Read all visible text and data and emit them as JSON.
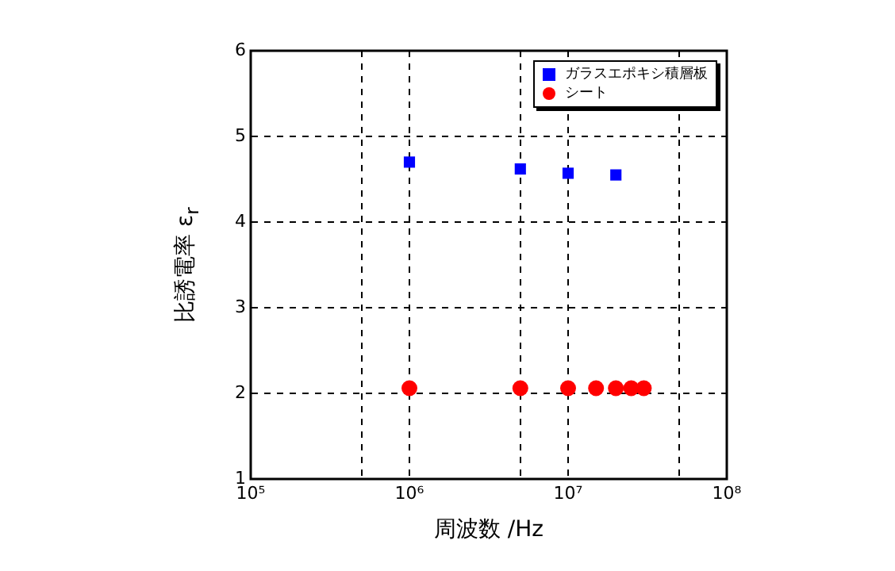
{
  "chart_data": {
    "type": "scatter",
    "xlabel": "周波数 /Hz",
    "ylabel": "比誘電率 ε$_{r}$",
    "log": "x",
    "xlim": [
      100000,
      100000000
    ],
    "xticks": [
      {
        "value": 100000,
        "label": "10⁵"
      },
      {
        "value": 500000,
        "label": null
      },
      {
        "value": 1000000,
        "label": "10⁶"
      },
      {
        "value": 5000000,
        "label": null
      },
      {
        "value": 10000000,
        "label": "10⁷"
      },
      {
        "value": 50000000,
        "label": null
      },
      {
        "value": 100000000,
        "label": "10⁸"
      }
    ],
    "ylim": [
      1,
      6
    ],
    "yticks": [
      1,
      2,
      3,
      4,
      5,
      6
    ],
    "grid": true,
    "legend": "top right",
    "series": [
      {
        "name": "ガラスエポキシ積層板",
        "color": "#0000ff",
        "marker": "square",
        "x": [
          1000000,
          5000000,
          10000000,
          20000000
        ],
        "values": [
          4.7,
          4.62,
          4.57,
          4.55
        ]
      },
      {
        "name": "シート",
        "color": "#ff0000",
        "marker": "circle",
        "x": [
          1000000,
          5000000,
          10000000,
          15000000,
          20000000,
          25000000,
          30000000
        ],
        "values": [
          2.06,
          2.06,
          2.06,
          2.06,
          2.06,
          2.06,
          2.06
        ]
      }
    ]
  }
}
